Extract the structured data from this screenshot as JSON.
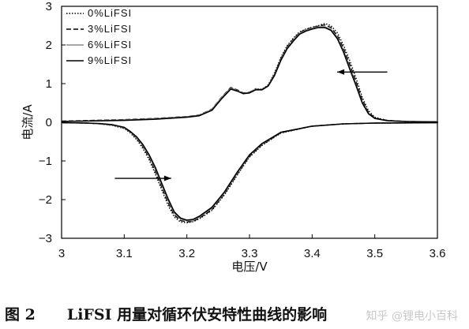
{
  "chart_data": {
    "type": "line",
    "xlabel": "电压/V",
    "ylabel": "电流/A",
    "xlim": [
      3.0,
      3.6
    ],
    "ylim": [
      -3,
      3
    ],
    "x_ticks": [
      "3",
      "3.1",
      "3.2",
      "3.3",
      "3.4",
      "3.5",
      "3.6"
    ],
    "y_ticks": [
      "-3",
      "-2",
      "-1",
      "0",
      "1",
      "2",
      "3"
    ],
    "grid": false,
    "legend_position": "top-left",
    "annotations": [
      {
        "type": "arrow",
        "direction": "left",
        "from": [
          3.52,
          1.3
        ],
        "to": [
          3.44,
          1.3
        ]
      },
      {
        "type": "arrow",
        "direction": "right",
        "from": [
          3.085,
          -1.45
        ],
        "to": [
          3.175,
          -1.45
        ]
      }
    ],
    "series": [
      {
        "name": "0%LiFSI",
        "style": "dotted",
        "color": "#000000",
        "charge_x": [
          3.0,
          3.1,
          3.15,
          3.2,
          3.22,
          3.24,
          3.255,
          3.27,
          3.28,
          3.29,
          3.3,
          3.31,
          3.32,
          3.33,
          3.34,
          3.35,
          3.36,
          3.37,
          3.38,
          3.39,
          3.4,
          3.41,
          3.42,
          3.43,
          3.44,
          3.45,
          3.46,
          3.47,
          3.48,
          3.49,
          3.5,
          3.52,
          3.55,
          3.6
        ],
        "charge_y": [
          0.02,
          0.06,
          0.09,
          0.14,
          0.18,
          0.32,
          0.62,
          0.89,
          0.83,
          0.74,
          0.77,
          0.87,
          0.86,
          0.97,
          1.28,
          1.68,
          1.98,
          2.18,
          2.34,
          2.41,
          2.46,
          2.5,
          2.56,
          2.5,
          2.32,
          2.0,
          1.6,
          1.15,
          0.65,
          0.3,
          0.13,
          0.05,
          0.02,
          0.01
        ],
        "discharge_x": [
          3.6,
          3.5,
          3.45,
          3.4,
          3.35,
          3.32,
          3.3,
          3.28,
          3.26,
          3.24,
          3.22,
          3.21,
          3.2,
          3.19,
          3.18,
          3.17,
          3.16,
          3.15,
          3.14,
          3.13,
          3.12,
          3.11,
          3.1,
          3.08,
          3.06,
          3.04,
          3.0
        ],
        "discharge_y": [
          -0.01,
          -0.02,
          -0.04,
          -0.1,
          -0.28,
          -0.6,
          -0.9,
          -1.38,
          -1.88,
          -2.28,
          -2.5,
          -2.57,
          -2.6,
          -2.58,
          -2.45,
          -2.15,
          -1.75,
          -1.35,
          -0.98,
          -0.68,
          -0.45,
          -0.28,
          -0.16,
          -0.08,
          -0.04,
          -0.02,
          -0.01
        ]
      },
      {
        "name": "3%LiFSI",
        "style": "dashed",
        "color": "#000000",
        "charge_x": [
          3.0,
          3.1,
          3.15,
          3.2,
          3.22,
          3.24,
          3.255,
          3.27,
          3.28,
          3.29,
          3.3,
          3.31,
          3.32,
          3.33,
          3.34,
          3.35,
          3.36,
          3.37,
          3.38,
          3.39,
          3.4,
          3.41,
          3.42,
          3.43,
          3.44,
          3.45,
          3.46,
          3.47,
          3.48,
          3.49,
          3.5,
          3.52,
          3.55,
          3.6
        ],
        "charge_y": [
          0.03,
          0.07,
          0.1,
          0.15,
          0.19,
          0.34,
          0.64,
          0.9,
          0.84,
          0.76,
          0.78,
          0.86,
          0.85,
          0.96,
          1.25,
          1.65,
          1.95,
          2.15,
          2.32,
          2.4,
          2.45,
          2.49,
          2.52,
          2.45,
          2.25,
          1.92,
          1.5,
          1.05,
          0.58,
          0.26,
          0.11,
          0.05,
          0.02,
          0.01
        ],
        "discharge_x": [
          3.6,
          3.5,
          3.45,
          3.4,
          3.35,
          3.32,
          3.3,
          3.28,
          3.26,
          3.24,
          3.22,
          3.21,
          3.2,
          3.19,
          3.18,
          3.17,
          3.16,
          3.15,
          3.14,
          3.13,
          3.12,
          3.11,
          3.1,
          3.08,
          3.06,
          3.04,
          3.0
        ],
        "discharge_y": [
          -0.01,
          -0.02,
          -0.04,
          -0.1,
          -0.27,
          -0.58,
          -0.88,
          -1.35,
          -1.85,
          -2.26,
          -2.48,
          -2.56,
          -2.58,
          -2.54,
          -2.4,
          -2.08,
          -1.68,
          -1.28,
          -0.92,
          -0.63,
          -0.42,
          -0.26,
          -0.15,
          -0.07,
          -0.04,
          -0.02,
          -0.01
        ]
      },
      {
        "name": "6%LiFSI",
        "style": "solid",
        "color": "#8a8a8a",
        "charge_x": [
          3.0,
          3.1,
          3.15,
          3.2,
          3.22,
          3.24,
          3.255,
          3.27,
          3.28,
          3.29,
          3.3,
          3.31,
          3.32,
          3.33,
          3.34,
          3.35,
          3.36,
          3.37,
          3.38,
          3.39,
          3.4,
          3.41,
          3.42,
          3.43,
          3.44,
          3.45,
          3.46,
          3.47,
          3.48,
          3.49,
          3.5,
          3.52,
          3.55,
          3.6
        ],
        "charge_y": [
          0.02,
          0.06,
          0.09,
          0.14,
          0.18,
          0.33,
          0.63,
          0.88,
          0.82,
          0.75,
          0.77,
          0.85,
          0.85,
          0.95,
          1.23,
          1.62,
          1.92,
          2.12,
          2.3,
          2.38,
          2.43,
          2.47,
          2.47,
          2.4,
          2.2,
          1.85,
          1.42,
          0.98,
          0.52,
          0.23,
          0.1,
          0.04,
          0.02,
          0.01
        ],
        "discharge_x": [
          3.6,
          3.5,
          3.45,
          3.4,
          3.35,
          3.32,
          3.3,
          3.28,
          3.26,
          3.24,
          3.22,
          3.21,
          3.2,
          3.19,
          3.18,
          3.17,
          3.16,
          3.15,
          3.14,
          3.13,
          3.12,
          3.11,
          3.1,
          3.08,
          3.06,
          3.04,
          3.0
        ],
        "discharge_y": [
          -0.01,
          -0.02,
          -0.04,
          -0.1,
          -0.26,
          -0.56,
          -0.85,
          -1.32,
          -1.82,
          -2.22,
          -2.45,
          -2.53,
          -2.55,
          -2.5,
          -2.35,
          -2.02,
          -1.62,
          -1.22,
          -0.88,
          -0.6,
          -0.4,
          -0.25,
          -0.14,
          -0.07,
          -0.04,
          -0.02,
          -0.01
        ]
      },
      {
        "name": "9%LiFSI",
        "style": "solid",
        "color": "#000000",
        "charge_x": [
          3.0,
          3.1,
          3.15,
          3.2,
          3.22,
          3.24,
          3.255,
          3.27,
          3.28,
          3.29,
          3.3,
          3.31,
          3.32,
          3.33,
          3.34,
          3.35,
          3.36,
          3.37,
          3.38,
          3.39,
          3.4,
          3.41,
          3.42,
          3.43,
          3.44,
          3.45,
          3.46,
          3.47,
          3.48,
          3.49,
          3.5,
          3.52,
          3.55,
          3.6
        ],
        "charge_y": [
          0.02,
          0.05,
          0.08,
          0.13,
          0.17,
          0.31,
          0.6,
          0.86,
          0.81,
          0.74,
          0.76,
          0.84,
          0.84,
          0.94,
          1.21,
          1.6,
          1.9,
          2.1,
          2.28,
          2.36,
          2.41,
          2.45,
          2.45,
          2.38,
          2.17,
          1.82,
          1.38,
          0.95,
          0.5,
          0.22,
          0.1,
          0.04,
          0.02,
          0.01
        ],
        "discharge_x": [
          3.6,
          3.5,
          3.45,
          3.4,
          3.35,
          3.32,
          3.3,
          3.28,
          3.26,
          3.24,
          3.22,
          3.21,
          3.2,
          3.19,
          3.18,
          3.17,
          3.16,
          3.15,
          3.14,
          3.13,
          3.12,
          3.11,
          3.1,
          3.08,
          3.06,
          3.04,
          3.0
        ],
        "discharge_y": [
          -0.01,
          -0.02,
          -0.04,
          -0.1,
          -0.26,
          -0.55,
          -0.84,
          -1.3,
          -1.8,
          -2.2,
          -2.43,
          -2.51,
          -2.53,
          -2.48,
          -2.32,
          -1.98,
          -1.58,
          -1.18,
          -0.85,
          -0.58,
          -0.38,
          -0.24,
          -0.13,
          -0.06,
          -0.03,
          -0.02,
          -0.01
        ]
      }
    ]
  },
  "caption": {
    "figure_number": "图 2",
    "title": "LiFSI 用量对循环伏安特性曲线的影响"
  },
  "watermark": "知乎 @锂电小百科"
}
